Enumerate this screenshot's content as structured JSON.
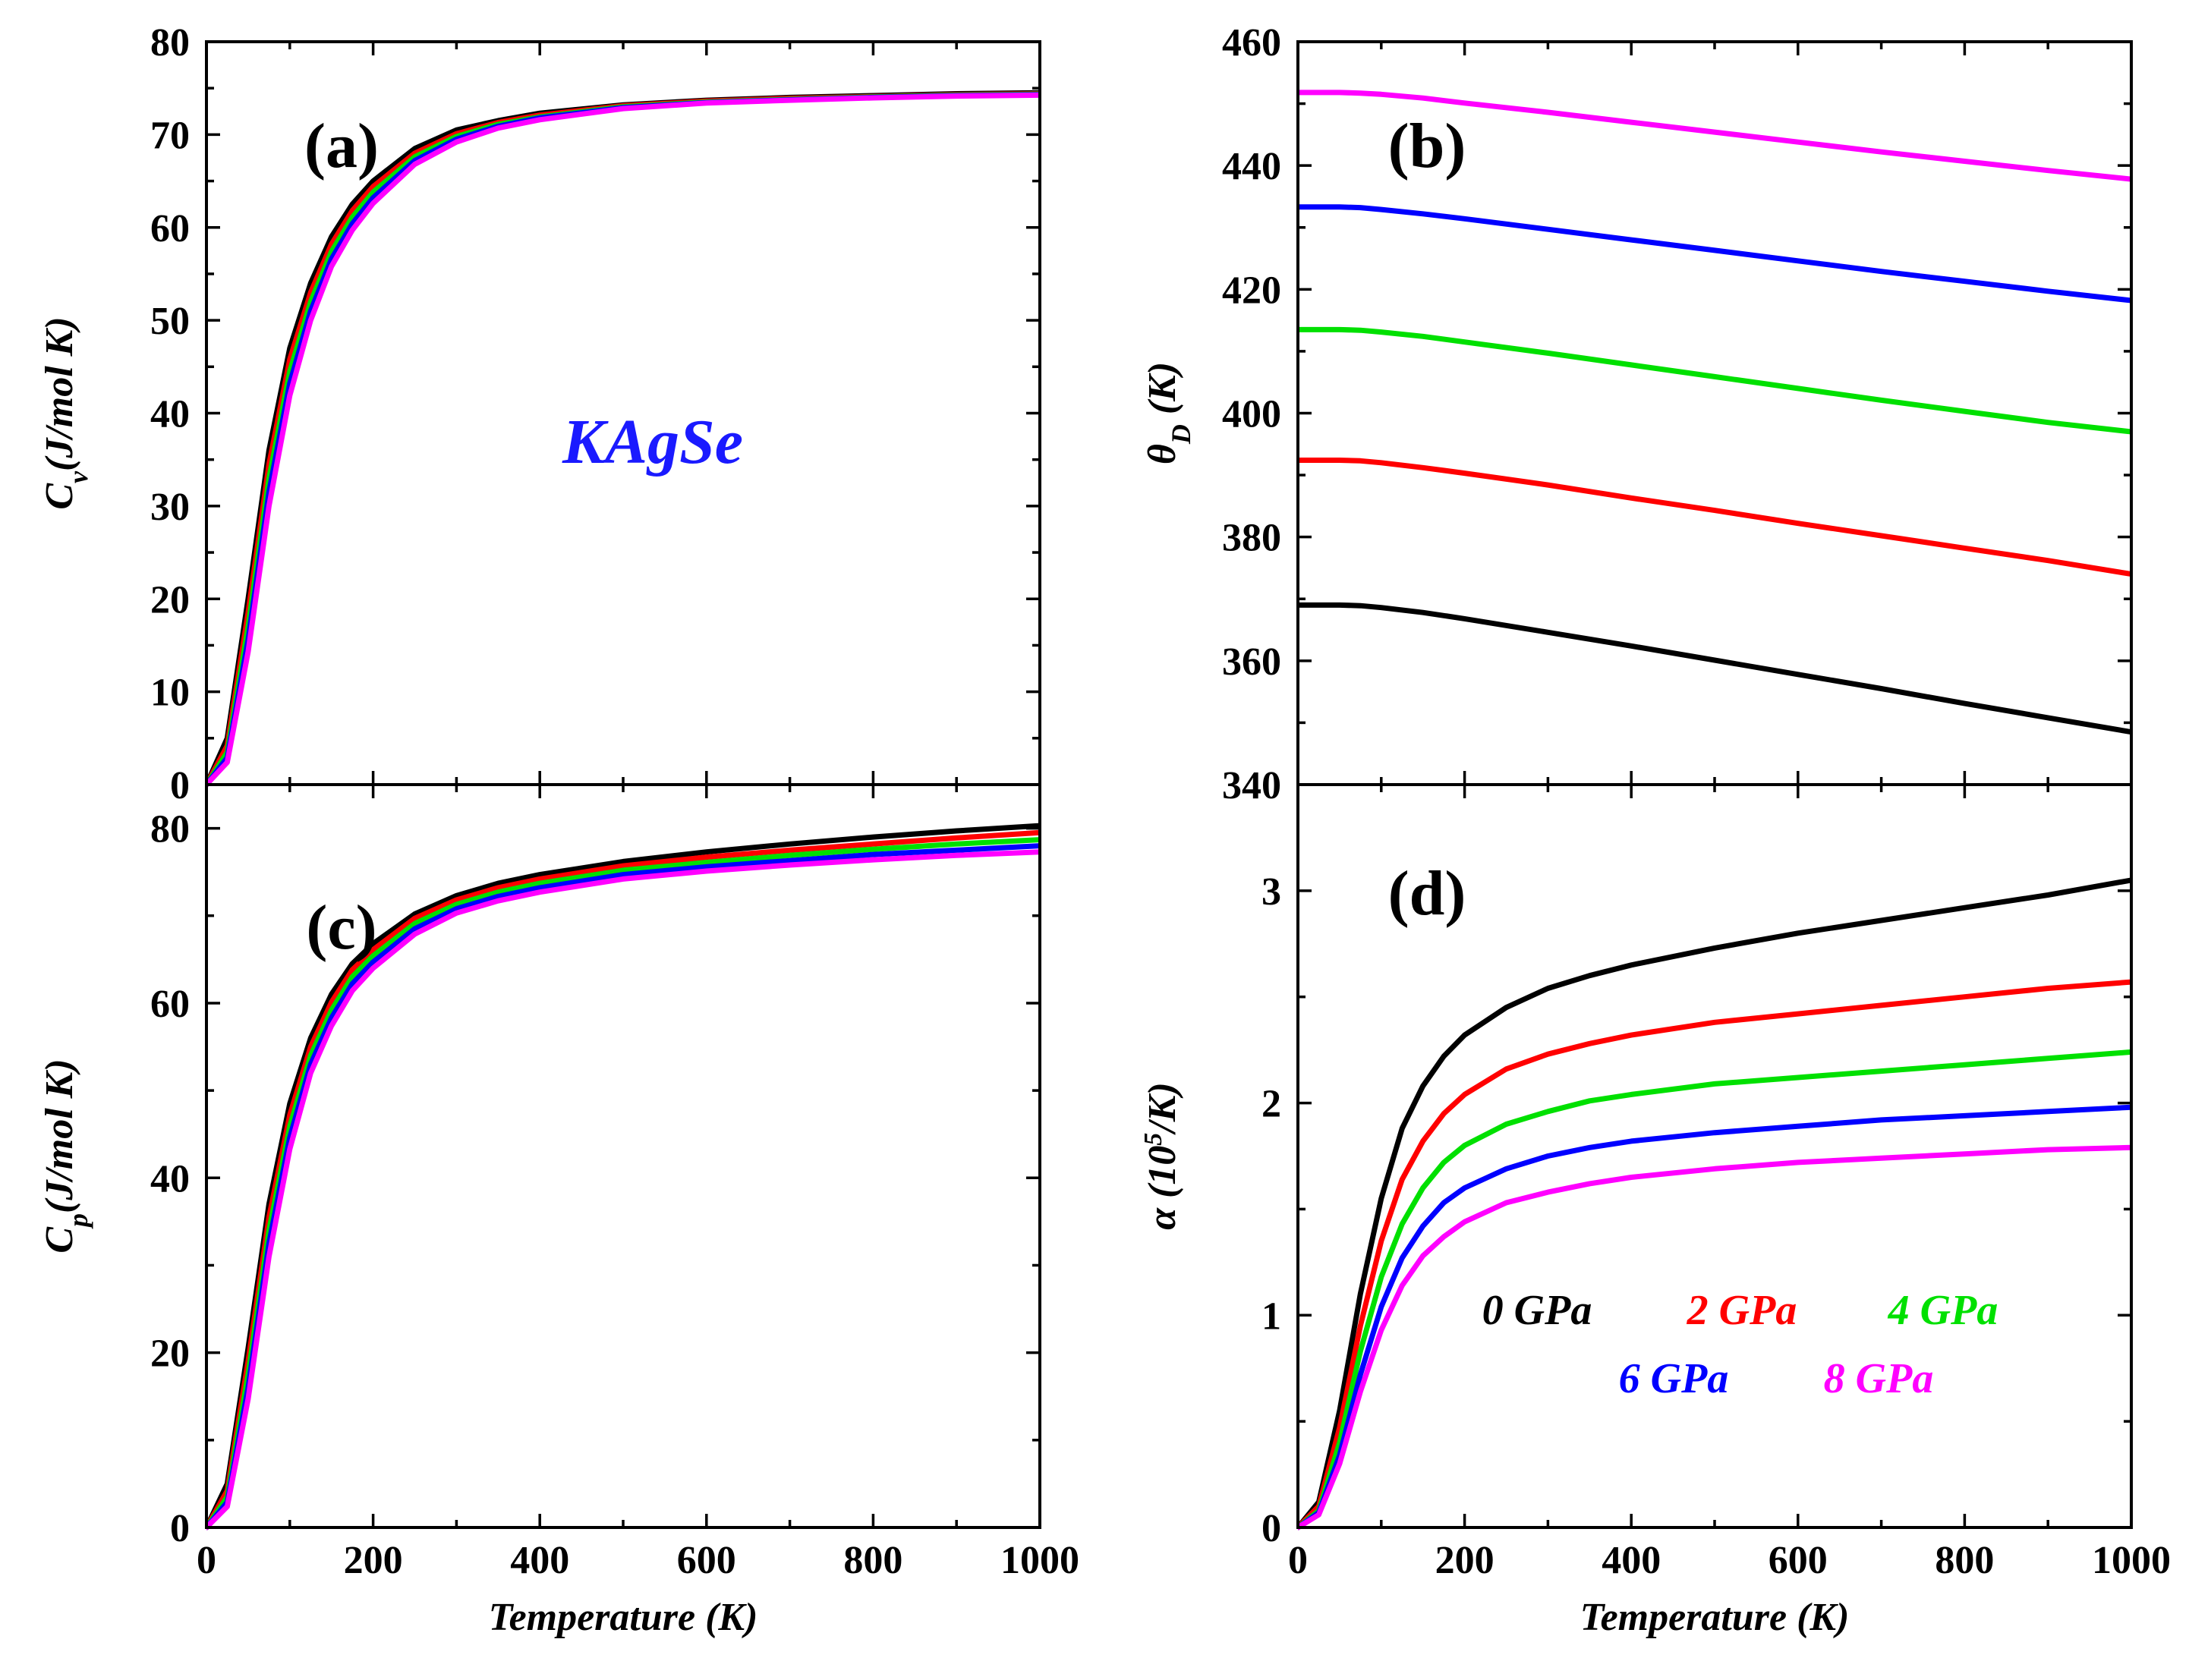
{
  "figure": {
    "compound_label": "KAgSe",
    "compound_color": "#1a1aff"
  },
  "legend": [
    {
      "label": "0 GPa",
      "color": "#000000"
    },
    {
      "label": "2 GPa",
      "color": "#ff0000"
    },
    {
      "label": "4 GPa",
      "color": "#00e000"
    },
    {
      "label": "6 GPa",
      "color": "#0000ff"
    },
    {
      "label": "8 GPa",
      "color": "#ff00ff"
    }
  ],
  "chart_data": [
    {
      "id": "a",
      "panel_label": "(a)",
      "type": "line",
      "ylabel_main": "C",
      "ylabel_sub": "v",
      "ylabel_rest": "(J/mol K)",
      "xlabel": "",
      "xlim": [
        0,
        1000
      ],
      "ylim": [
        0,
        80
      ],
      "xticks": [
        "0",
        "200",
        "400",
        "600",
        "800",
        "1000"
      ],
      "yticks": [
        "0",
        "10",
        "20",
        "30",
        "40",
        "50",
        "60",
        "70",
        "80"
      ],
      "x": [
        0,
        25,
        50,
        75,
        100,
        125,
        150,
        175,
        200,
        250,
        300,
        350,
        400,
        500,
        600,
        700,
        800,
        900,
        1000
      ],
      "series": [
        {
          "name": "0 GPa",
          "color": "#000000",
          "values": [
            0,
            5,
            20,
            36,
            47,
            54,
            59,
            62.5,
            65,
            68.5,
            70.5,
            71.5,
            72.3,
            73.2,
            73.7,
            74,
            74.2,
            74.4,
            74.5
          ]
        },
        {
          "name": "2 GPa",
          "color": "#ff0000",
          "values": [
            0,
            4.2,
            18.5,
            34.5,
            45.8,
            53,
            58.2,
            61.8,
            64.4,
            68,
            70.1,
            71.3,
            72.1,
            73.1,
            73.6,
            73.9,
            74.1,
            74.3,
            74.4
          ]
        },
        {
          "name": "4 GPa",
          "color": "#00e000",
          "values": [
            0,
            3.5,
            17,
            33,
            44.5,
            52,
            57.4,
            61.1,
            63.8,
            67.6,
            69.8,
            71.1,
            71.9,
            73,
            73.5,
            73.8,
            74.05,
            74.25,
            74.35
          ]
        },
        {
          "name": "6 GPa",
          "color": "#0000ff",
          "values": [
            0,
            2.9,
            15.6,
            31.5,
            43.2,
            51,
            56.6,
            60.4,
            63.2,
            67.2,
            69.5,
            70.9,
            71.8,
            72.9,
            73.45,
            73.75,
            74,
            74.2,
            74.3
          ]
        },
        {
          "name": "8 GPa",
          "color": "#ff00ff",
          "values": [
            0,
            2.4,
            14.3,
            30,
            41.9,
            50,
            55.8,
            59.7,
            62.6,
            66.8,
            69.2,
            70.7,
            71.6,
            72.8,
            73.4,
            73.7,
            73.95,
            74.15,
            74.25
          ]
        }
      ]
    },
    {
      "id": "b",
      "panel_label": "(b)",
      "type": "line",
      "ylabel_main": "θ",
      "ylabel_sub": "D",
      "ylabel_rest": " (K)",
      "xlabel": "",
      "xlim": [
        0,
        1000
      ],
      "ylim": [
        340,
        460
      ],
      "xticks": [
        "0",
        "200",
        "400",
        "600",
        "800",
        "1000"
      ],
      "yticks": [
        "340",
        "360",
        "380",
        "400",
        "420",
        "440",
        "460"
      ],
      "x": [
        0,
        25,
        50,
        75,
        100,
        150,
        200,
        300,
        400,
        500,
        600,
        700,
        800,
        900,
        1000
      ],
      "series": [
        {
          "name": "0 GPa",
          "color": "#000000",
          "values": [
            369,
            369,
            369,
            368.9,
            368.6,
            367.8,
            366.8,
            364.6,
            362.4,
            360.1,
            357.8,
            355.5,
            353.1,
            350.8,
            348.5
          ]
        },
        {
          "name": "2 GPa",
          "color": "#ff0000",
          "values": [
            392.4,
            392.4,
            392.4,
            392.3,
            392,
            391.2,
            390.3,
            388.4,
            386.3,
            384.3,
            382.2,
            380.2,
            378.2,
            376.2,
            374
          ]
        },
        {
          "name": "4 GPa",
          "color": "#00e000",
          "values": [
            413.5,
            413.5,
            413.5,
            413.4,
            413.1,
            412.4,
            411.5,
            409.7,
            407.8,
            405.9,
            404,
            402.1,
            400.3,
            398.5,
            397
          ]
        },
        {
          "name": "6 GPa",
          "color": "#0000ff",
          "values": [
            433.3,
            433.3,
            433.3,
            433.2,
            432.9,
            432.2,
            431.4,
            429.7,
            428,
            426.3,
            424.6,
            422.9,
            421.3,
            419.7,
            418.2
          ]
        },
        {
          "name": "8 GPa",
          "color": "#ff00ff",
          "values": [
            451.8,
            451.8,
            451.8,
            451.7,
            451.5,
            450.9,
            450.1,
            448.6,
            447,
            445.4,
            443.8,
            442.2,
            440.7,
            439.2,
            437.8
          ]
        }
      ]
    },
    {
      "id": "c",
      "panel_label": "(c)",
      "type": "line",
      "ylabel_main": "C",
      "ylabel_sub": "p",
      "ylabel_rest": "(J/mol K)",
      "xlabel": "Temperature (K)",
      "xlim": [
        0,
        1000
      ],
      "ylim": [
        0,
        85
      ],
      "xticks": [
        "0",
        "200",
        "400",
        "600",
        "800",
        "1000"
      ],
      "yticks": [
        "0",
        "20",
        "40",
        "60",
        "80"
      ],
      "x": [
        0,
        25,
        50,
        75,
        100,
        125,
        150,
        175,
        200,
        250,
        300,
        350,
        400,
        500,
        600,
        700,
        800,
        900,
        1000
      ],
      "series": [
        {
          "name": "0 GPa",
          "color": "#000000",
          "values": [
            0,
            5,
            20.5,
            37,
            48.5,
            56,
            61,
            64.5,
            66.8,
            70.2,
            72.3,
            73.7,
            74.7,
            76.2,
            77.3,
            78.2,
            79,
            79.7,
            80.3
          ]
        },
        {
          "name": "2 GPa",
          "color": "#ff0000",
          "values": [
            0,
            4.2,
            19,
            35.5,
            47.2,
            55,
            60.1,
            63.8,
            66.1,
            69.7,
            71.8,
            73.2,
            74.2,
            75.7,
            76.7,
            77.5,
            78.2,
            78.9,
            79.5
          ]
        },
        {
          "name": "4 GPa",
          "color": "#00e000",
          "values": [
            0,
            3.5,
            17.5,
            34,
            45.9,
            54,
            59.2,
            63,
            65.4,
            69.1,
            71.3,
            72.7,
            73.7,
            75.2,
            76.1,
            76.9,
            77.6,
            78.2,
            78.7
          ]
        },
        {
          "name": "6 GPa",
          "color": "#0000ff",
          "values": [
            0,
            2.9,
            16,
            32.5,
            44.6,
            53,
            58.3,
            62.2,
            64.7,
            68.5,
            70.8,
            72.2,
            73.2,
            74.7,
            75.6,
            76.3,
            77,
            77.5,
            78
          ]
        },
        {
          "name": "8 GPa",
          "color": "#ff00ff",
          "values": [
            0,
            2.4,
            14.7,
            31,
            43.3,
            52,
            57.4,
            61.4,
            64,
            67.9,
            70.3,
            71.7,
            72.7,
            74.2,
            75.1,
            75.8,
            76.4,
            76.9,
            77.3
          ]
        }
      ]
    },
    {
      "id": "d",
      "panel_label": "(d)",
      "type": "line",
      "ylabel_main": "α (10",
      "ylabel_sup": "5",
      "ylabel_rest": "/K)",
      "xlabel": "Temperature (K)",
      "xlim": [
        0,
        1000
      ],
      "ylim": [
        0,
        3.5
      ],
      "xticks": [
        "0",
        "200",
        "400",
        "600",
        "800",
        "1000"
      ],
      "yticks": [
        "0",
        "1",
        "2",
        "3"
      ],
      "x": [
        0,
        25,
        50,
        75,
        100,
        125,
        150,
        175,
        200,
        250,
        300,
        350,
        400,
        500,
        600,
        700,
        800,
        900,
        1000
      ],
      "series": [
        {
          "name": "0 GPa",
          "color": "#000000",
          "values": [
            0,
            0.12,
            0.55,
            1.1,
            1.55,
            1.88,
            2.08,
            2.22,
            2.32,
            2.45,
            2.54,
            2.6,
            2.65,
            2.73,
            2.8,
            2.86,
            2.92,
            2.98,
            3.05
          ]
        },
        {
          "name": "2 GPa",
          "color": "#ff0000",
          "values": [
            0,
            0.1,
            0.47,
            0.95,
            1.35,
            1.64,
            1.82,
            1.95,
            2.04,
            2.16,
            2.23,
            2.28,
            2.32,
            2.38,
            2.42,
            2.46,
            2.5,
            2.54,
            2.57
          ]
        },
        {
          "name": "4 GPa",
          "color": "#00e000",
          "values": [
            0,
            0.08,
            0.4,
            0.83,
            1.18,
            1.43,
            1.6,
            1.72,
            1.8,
            1.9,
            1.96,
            2.01,
            2.04,
            2.09,
            2.12,
            2.15,
            2.18,
            2.21,
            2.24
          ]
        },
        {
          "name": "6 GPa",
          "color": "#0000ff",
          "values": [
            0,
            0.07,
            0.34,
            0.72,
            1.04,
            1.27,
            1.42,
            1.53,
            1.6,
            1.69,
            1.75,
            1.79,
            1.82,
            1.86,
            1.89,
            1.92,
            1.94,
            1.96,
            1.98
          ]
        },
        {
          "name": "8 GPa",
          "color": "#ff00ff",
          "values": [
            0,
            0.06,
            0.3,
            0.64,
            0.93,
            1.14,
            1.28,
            1.37,
            1.44,
            1.53,
            1.58,
            1.62,
            1.65,
            1.69,
            1.72,
            1.74,
            1.76,
            1.78,
            1.79
          ]
        }
      ]
    }
  ]
}
